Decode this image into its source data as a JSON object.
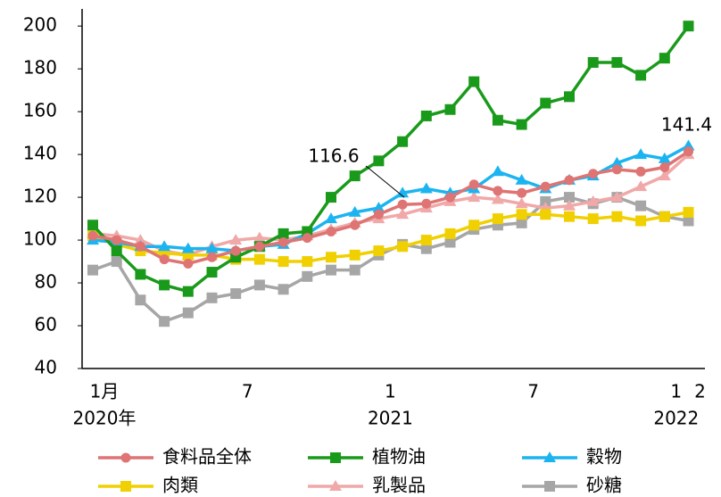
{
  "chart_data": {
    "type": "line",
    "categories": [
      "1月",
      null,
      null,
      null,
      null,
      null,
      "7",
      null,
      null,
      null,
      null,
      null,
      "1",
      null,
      null,
      null,
      null,
      null,
      "7",
      null,
      null,
      null,
      null,
      null,
      "1",
      "2"
    ],
    "year_labels": [
      "2020年",
      null,
      null,
      null,
      null,
      null,
      null,
      null,
      null,
      null,
      null,
      null,
      "2021",
      null,
      null,
      null,
      null,
      null,
      null,
      null,
      null,
      null,
      null,
      null,
      "2022",
      null
    ],
    "ylim": [
      40,
      208
    ],
    "yticks": [
      40,
      60,
      80,
      100,
      120,
      140,
      160,
      180,
      200
    ],
    "grid": false,
    "legend": "bottom",
    "series": [
      {
        "name": "食料品全体",
        "color": "#de7474",
        "marker": "circle",
        "values": [
          102,
          100,
          97,
          91,
          89,
          92,
          95,
          97,
          99,
          101,
          104,
          107,
          112,
          116.6,
          117,
          120,
          126,
          123,
          122,
          125,
          128,
          131,
          133,
          132,
          134,
          141.4
        ],
        "value_labels": [
          null,
          null,
          null,
          null,
          null,
          null,
          null,
          null,
          null,
          null,
          null,
          null,
          null,
          "116.6",
          null,
          null,
          null,
          null,
          null,
          null,
          null,
          null,
          null,
          null,
          null,
          "141.4"
        ]
      },
      {
        "name": "植物油",
        "color": "#1a9a1a",
        "marker": "square",
        "values": [
          107,
          95,
          84,
          79,
          76,
          85,
          92,
          97,
          103,
          104,
          120,
          130,
          137,
          146,
          158,
          161,
          174,
          156,
          154,
          164,
          167,
          183,
          183,
          177,
          185,
          200
        ]
      },
      {
        "name": "穀物",
        "color": "#1cb4f0",
        "marker": "triangle",
        "values": [
          100,
          99,
          97,
          97,
          96,
          96,
          95,
          97,
          98,
          103,
          110,
          113,
          115,
          122,
          124,
          122,
          124,
          132,
          128,
          124,
          128,
          130,
          136,
          140,
          138,
          144
        ]
      },
      {
        "name": "肉類",
        "color": "#f0d000",
        "marker": "square",
        "values": [
          102,
          98,
          95,
          94,
          93,
          93,
          91,
          91,
          90,
          90,
          92,
          93,
          95,
          97,
          100,
          103,
          107,
          110,
          112,
          112,
          111,
          110,
          111,
          109,
          111,
          113
        ]
      },
      {
        "name": "乳製品",
        "color": "#f0a8a8",
        "marker": "triangle",
        "values": [
          103,
          102,
          100,
          95,
          93,
          97,
          100,
          101,
          100,
          102,
          105,
          108,
          110,
          112,
          115,
          118,
          120,
          119,
          117,
          115,
          116,
          118,
          120,
          125,
          130,
          140
        ]
      },
      {
        "name": "砂糖",
        "color": "#a6a6a6",
        "marker": "square",
        "values": [
          86,
          90,
          72,
          62,
          66,
          73,
          75,
          79,
          77,
          83,
          86,
          86,
          93,
          98,
          96,
          99,
          105,
          107,
          108,
          118,
          120,
          117,
          120,
          116,
          111,
          109
        ]
      }
    ]
  }
}
